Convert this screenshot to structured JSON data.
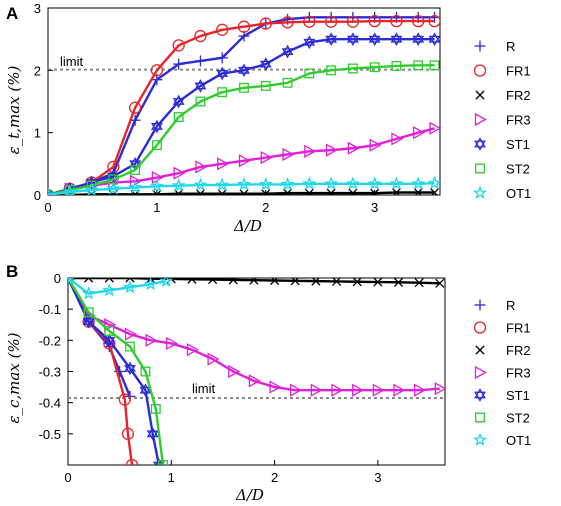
{
  "chart_data": [
    {
      "panel": "A",
      "type": "line",
      "ylabel": "ε_t,max (%)",
      "xlabel": "Δ/D",
      "xlim": [
        0,
        3.6
      ],
      "ylim": [
        0,
        3
      ],
      "xticks": [
        "0",
        "1",
        "2",
        "3"
      ],
      "yticks": [
        "0",
        "1",
        "2",
        "3"
      ],
      "legend_position": "right",
      "threshold": {
        "y": 2.0,
        "label": "limit"
      },
      "series": [
        {
          "name": "R",
          "color": "#2b2bd6",
          "marker": "plus",
          "x": [
            0,
            0.2,
            0.4,
            0.6,
            0.8,
            1.0,
            1.2,
            1.4,
            1.6,
            1.8,
            2.0,
            2.2,
            2.4,
            2.6,
            2.8,
            3.0,
            3.2,
            3.4,
            3.55
          ],
          "y": [
            0,
            0.08,
            0.2,
            0.35,
            1.2,
            1.85,
            2.1,
            2.15,
            2.2,
            2.55,
            2.75,
            2.82,
            2.85,
            2.85,
            2.85,
            2.85,
            2.85,
            2.85,
            2.85
          ]
        },
        {
          "name": "FR1",
          "color": "#e8242b",
          "marker": "circle",
          "x": [
            0,
            0.2,
            0.4,
            0.6,
            0.8,
            1.0,
            1.2,
            1.4,
            1.6,
            1.8,
            2.0,
            2.2,
            2.4,
            2.6,
            2.8,
            3.0,
            3.2,
            3.4,
            3.55
          ],
          "y": [
            0,
            0.1,
            0.2,
            0.45,
            1.4,
            2.0,
            2.4,
            2.55,
            2.65,
            2.7,
            2.75,
            2.77,
            2.78,
            2.78,
            2.78,
            2.79,
            2.79,
            2.79,
            2.79
          ]
        },
        {
          "name": "FR2",
          "color": "#000000",
          "marker": "x",
          "x": [
            0,
            0.2,
            0.4,
            0.6,
            0.8,
            1.0,
            1.2,
            1.4,
            1.6,
            1.8,
            2.0,
            2.2,
            2.4,
            2.6,
            2.8,
            3.0,
            3.2,
            3.4,
            3.55
          ],
          "y": [
            0,
            0.0,
            0.01,
            0.01,
            0.01,
            0.01,
            0.02,
            0.02,
            0.02,
            0.02,
            0.02,
            0.03,
            0.03,
            0.03,
            0.03,
            0.03,
            0.04,
            0.04,
            0.04
          ]
        },
        {
          "name": "FR3",
          "color": "#e020d8",
          "marker": "triangle-right",
          "x": [
            0,
            0.2,
            0.4,
            0.6,
            0.8,
            1.0,
            1.2,
            1.4,
            1.6,
            1.8,
            2.0,
            2.2,
            2.4,
            2.6,
            2.8,
            3.0,
            3.2,
            3.4,
            3.55
          ],
          "y": [
            0,
            0.1,
            0.15,
            0.2,
            0.22,
            0.28,
            0.35,
            0.45,
            0.5,
            0.55,
            0.6,
            0.65,
            0.7,
            0.72,
            0.75,
            0.8,
            0.9,
            1.0,
            1.07
          ]
        },
        {
          "name": "ST1",
          "color": "#2b2bd6",
          "marker": "hexagram",
          "x": [
            0,
            0.2,
            0.4,
            0.6,
            0.8,
            1.0,
            1.2,
            1.4,
            1.6,
            1.8,
            2.0,
            2.2,
            2.4,
            2.6,
            2.8,
            3.0,
            3.2,
            3.4,
            3.55
          ],
          "y": [
            0,
            0.1,
            0.2,
            0.3,
            0.5,
            1.1,
            1.5,
            1.75,
            1.95,
            2.0,
            2.1,
            2.3,
            2.45,
            2.5,
            2.5,
            2.5,
            2.5,
            2.5,
            2.5
          ]
        },
        {
          "name": "ST2",
          "color": "#2ecc2e",
          "marker": "square",
          "x": [
            0,
            0.2,
            0.4,
            0.6,
            0.8,
            1.0,
            1.2,
            1.4,
            1.6,
            1.8,
            2.0,
            2.2,
            2.4,
            2.6,
            2.8,
            3.0,
            3.2,
            3.4,
            3.55
          ],
          "y": [
            0,
            0.08,
            0.15,
            0.25,
            0.4,
            0.8,
            1.25,
            1.5,
            1.65,
            1.72,
            1.75,
            1.8,
            1.95,
            2.0,
            2.03,
            2.05,
            2.07,
            2.08,
            2.08
          ]
        },
        {
          "name": "OT1",
          "color": "#22d8e8",
          "marker": "star",
          "x": [
            0,
            0.2,
            0.4,
            0.6,
            0.8,
            1.0,
            1.2,
            1.4,
            1.6,
            1.8,
            2.0,
            2.2,
            2.4,
            2.6,
            2.8,
            3.0,
            3.2,
            3.4,
            3.55
          ],
          "y": [
            0,
            0.05,
            0.08,
            0.1,
            0.12,
            0.14,
            0.15,
            0.16,
            0.16,
            0.17,
            0.17,
            0.17,
            0.18,
            0.18,
            0.18,
            0.18,
            0.18,
            0.18,
            0.19
          ]
        }
      ]
    },
    {
      "panel": "B",
      "type": "line",
      "ylabel": "ε_c,max (%)",
      "xlabel": "Δ/D",
      "xlim": [
        0,
        3.65
      ],
      "ylim": [
        -0.6,
        0
      ],
      "xticks": [
        "0",
        "1",
        "2",
        "3"
      ],
      "yticks": [
        "0",
        "-0.1",
        "-0.2",
        "-0.3",
        "-0.4",
        "-0.5"
      ],
      "legend_position": "right",
      "threshold": {
        "y": -0.385,
        "label": "limit"
      },
      "series": [
        {
          "name": "R",
          "color": "#2b2bd6",
          "marker": "plus",
          "x": [
            0,
            0.2,
            0.4,
            0.5,
            0.6
          ],
          "y": [
            0,
            -0.14,
            -0.22,
            -0.3,
            -0.38
          ]
        },
        {
          "name": "FR1",
          "color": "#e8242b",
          "marker": "circle",
          "x": [
            0,
            0.2,
            0.4,
            0.55,
            0.58,
            0.62
          ],
          "y": [
            0,
            -0.14,
            -0.21,
            -0.39,
            -0.5,
            -0.6
          ]
        },
        {
          "name": "FR2",
          "color": "#000000",
          "marker": "x",
          "x": [
            0,
            0.2,
            0.4,
            0.6,
            0.8,
            1.0,
            1.2,
            1.4,
            1.6,
            1.8,
            2.0,
            2.2,
            2.4,
            2.6,
            2.8,
            3.0,
            3.2,
            3.4,
            3.6
          ],
          "y": [
            0,
            0.0,
            0.0,
            0.0,
            -0.002,
            -0.003,
            -0.004,
            -0.005,
            -0.006,
            -0.007,
            -0.008,
            -0.009,
            -0.01,
            -0.011,
            -0.012,
            -0.013,
            -0.014,
            -0.015,
            -0.017
          ]
        },
        {
          "name": "FR3",
          "color": "#e020d8",
          "marker": "triangle-right",
          "x": [
            0,
            0.2,
            0.4,
            0.6,
            0.8,
            1.0,
            1.2,
            1.4,
            1.6,
            1.8,
            2.0,
            2.2,
            2.4,
            2.6,
            2.8,
            3.0,
            3.2,
            3.4,
            3.6
          ],
          "y": [
            0,
            -0.12,
            -0.15,
            -0.18,
            -0.2,
            -0.21,
            -0.23,
            -0.26,
            -0.3,
            -0.33,
            -0.35,
            -0.36,
            -0.36,
            -0.36,
            -0.36,
            -0.36,
            -0.36,
            -0.36,
            -0.355
          ]
        },
        {
          "name": "ST1",
          "color": "#2b2bd6",
          "marker": "hexagram",
          "x": [
            0,
            0.2,
            0.4,
            0.6,
            0.75,
            0.82,
            0.88
          ],
          "y": [
            0,
            -0.14,
            -0.2,
            -0.29,
            -0.36,
            -0.5,
            -0.6
          ]
        },
        {
          "name": "ST2",
          "color": "#2ecc2e",
          "marker": "square",
          "x": [
            0,
            0.2,
            0.4,
            0.6,
            0.75,
            0.85,
            0.92
          ],
          "y": [
            0,
            -0.11,
            -0.17,
            -0.22,
            -0.3,
            -0.42,
            -0.6
          ]
        },
        {
          "name": "OT1",
          "color": "#22d8e8",
          "marker": "star",
          "x": [
            0,
            0.2,
            0.4,
            0.6,
            0.8,
            0.95
          ],
          "y": [
            0,
            -0.05,
            -0.04,
            -0.03,
            -0.02,
            -0.01
          ]
        }
      ]
    }
  ],
  "panels": {
    "a": {
      "label": "A",
      "limit_label": "limit"
    },
    "b": {
      "label": "B",
      "limit_label": "limit"
    }
  }
}
